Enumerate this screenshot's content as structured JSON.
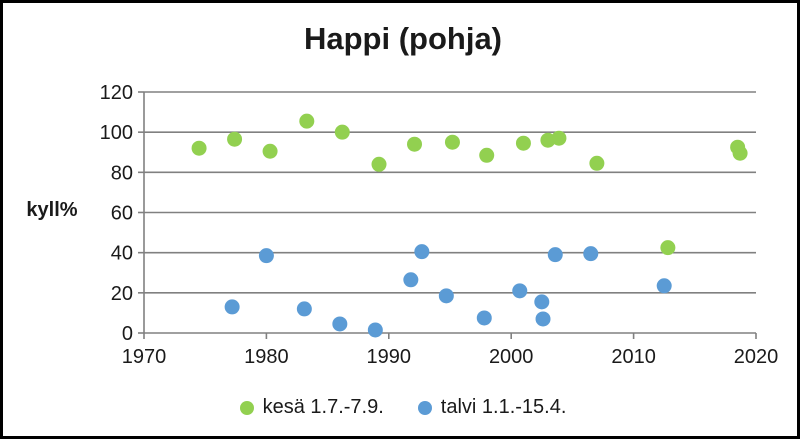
{
  "title": "Happi (pohja)",
  "chart_data": {
    "type": "scatter",
    "title": "Happi (pohja)",
    "xlabel": "",
    "ylabel": "kyll%",
    "xlim": [
      1970,
      2020
    ],
    "ylim": [
      0,
      120
    ],
    "xticks": [
      1970,
      1980,
      1990,
      2000,
      2010,
      2020
    ],
    "yticks": [
      0,
      20,
      40,
      60,
      80,
      100,
      120
    ],
    "grid": "horizontal-gridlines",
    "gridline_color": "#808080",
    "axis_color": "#808080",
    "legend_position": "bottom",
    "series": [
      {
        "name": "kesä 1.7.-7.9.",
        "color": "#92d050",
        "points": [
          [
            1974.5,
            92
          ],
          [
            1977.4,
            96.5
          ],
          [
            1980.3,
            90.5
          ],
          [
            1983.3,
            105.5
          ],
          [
            1986.2,
            100
          ],
          [
            1989.2,
            84
          ],
          [
            1992.1,
            94
          ],
          [
            1995.2,
            95
          ],
          [
            1998.0,
            88.5
          ],
          [
            2001.0,
            94.5
          ],
          [
            2003.0,
            96
          ],
          [
            2003.9,
            97
          ],
          [
            2007.0,
            84.5
          ],
          [
            2012.8,
            42.5
          ],
          [
            2018.5,
            92.5
          ],
          [
            2018.7,
            89.5
          ]
        ]
      },
      {
        "name": "talvi 1.1.-15.4.",
        "color": "#5b9bd5",
        "points": [
          [
            1977.2,
            13
          ],
          [
            1980.0,
            38.5
          ],
          [
            1983.1,
            12
          ],
          [
            1986.0,
            4.5
          ],
          [
            1988.9,
            1.5
          ],
          [
            1991.8,
            26.5
          ],
          [
            1992.7,
            40.5
          ],
          [
            1994.7,
            18.5
          ],
          [
            1997.8,
            7.5
          ],
          [
            2000.7,
            21
          ],
          [
            2002.5,
            15.5
          ],
          [
            2002.6,
            7
          ],
          [
            2003.6,
            39
          ],
          [
            2006.5,
            39.5
          ],
          [
            2012.5,
            23.5
          ]
        ]
      }
    ]
  }
}
